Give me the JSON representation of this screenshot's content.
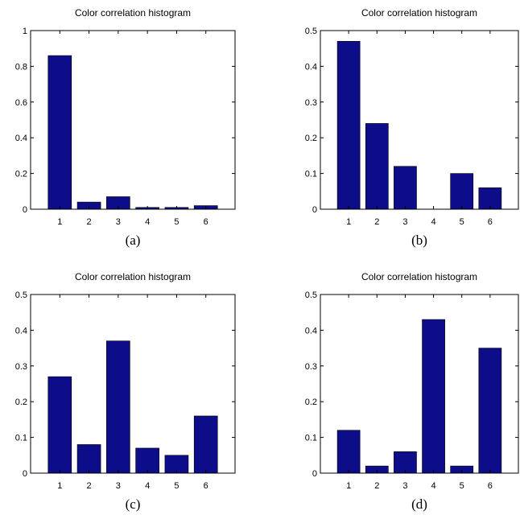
{
  "colors": {
    "bar": "#0d0d8a",
    "axis": "#000000",
    "background": "#ffffff"
  },
  "chart_data": [
    {
      "type": "bar",
      "title": "Color correlation histogram",
      "caption": "(a)",
      "categories": [
        "1",
        "2",
        "3",
        "4",
        "5",
        "6"
      ],
      "values": [
        0.86,
        0.04,
        0.07,
        0.01,
        0.01,
        0.02
      ],
      "ylim": [
        0,
        1
      ],
      "yticks": [
        0,
        0.2,
        0.4,
        0.6,
        0.8,
        1
      ],
      "ytick_labels": [
        "0",
        "0.2",
        "0.4",
        "0.6",
        "0.8",
        "1"
      ],
      "xlabel": "",
      "ylabel": "",
      "grid": false
    },
    {
      "type": "bar",
      "title": "Color correlation histogram",
      "caption": "(b)",
      "categories": [
        "1",
        "2",
        "3",
        "4",
        "5",
        "6"
      ],
      "values": [
        0.47,
        0.24,
        0.12,
        0.0,
        0.1,
        0.06
      ],
      "ylim": [
        0,
        0.5
      ],
      "yticks": [
        0,
        0.1,
        0.2,
        0.3,
        0.4,
        0.5
      ],
      "ytick_labels": [
        "0",
        "0.1",
        "0.2",
        "0.3",
        "0.4",
        "0.5"
      ],
      "xlabel": "",
      "ylabel": "",
      "grid": false
    },
    {
      "type": "bar",
      "title": "Color correlation histogram",
      "caption": "(c)",
      "categories": [
        "1",
        "2",
        "3",
        "4",
        "5",
        "6"
      ],
      "values": [
        0.27,
        0.08,
        0.37,
        0.07,
        0.05,
        0.16
      ],
      "ylim": [
        0,
        0.5
      ],
      "yticks": [
        0,
        0.1,
        0.2,
        0.3,
        0.4,
        0.5
      ],
      "ytick_labels": [
        "0",
        "0.1",
        "0.2",
        "0.3",
        "0.4",
        "0.5"
      ],
      "xlabel": "",
      "ylabel": "",
      "grid": false
    },
    {
      "type": "bar",
      "title": "Color correlation histogram",
      "caption": "(d)",
      "categories": [
        "1",
        "2",
        "3",
        "4",
        "5",
        "6"
      ],
      "values": [
        0.12,
        0.02,
        0.06,
        0.43,
        0.02,
        0.35
      ],
      "ylim": [
        0,
        0.5
      ],
      "yticks": [
        0,
        0.1,
        0.2,
        0.3,
        0.4,
        0.5
      ],
      "ytick_labels": [
        "0",
        "0.1",
        "0.2",
        "0.3",
        "0.4",
        "0.5"
      ],
      "xlabel": "",
      "ylabel": "",
      "grid": false
    }
  ]
}
